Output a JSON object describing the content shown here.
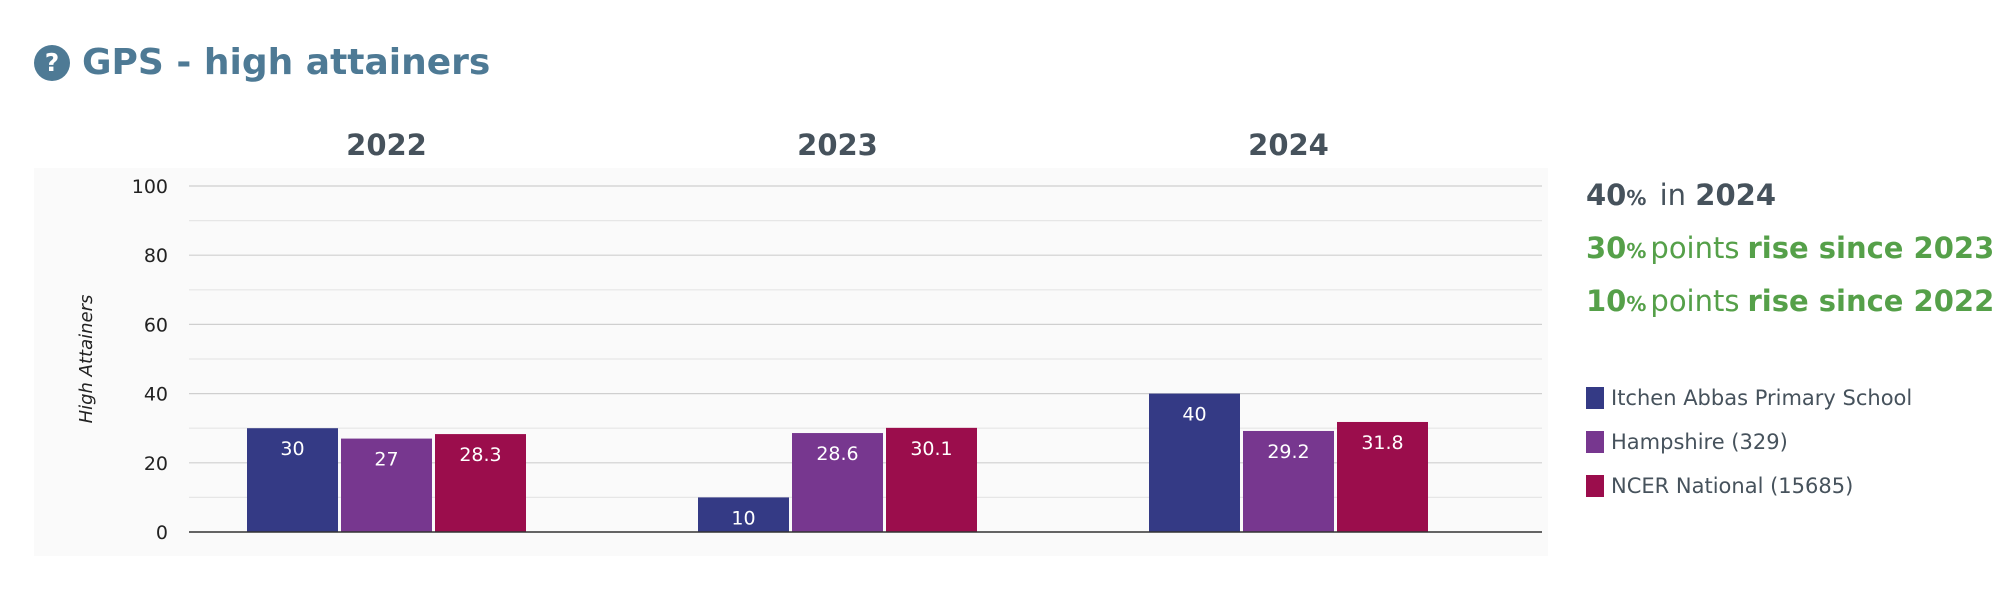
{
  "title": "GPS - high attainers",
  "help_icon_glyph": "?",
  "stats": {
    "line1": {
      "num": "40",
      "pct": "%",
      "text": "in",
      "strong": "2024"
    },
    "line2": {
      "num": "30",
      "pct": "%",
      "text": "points",
      "strong": "rise since 2023"
    },
    "line3": {
      "num": "10",
      "pct": "%",
      "text": "points",
      "strong": "rise since 2022"
    }
  },
  "colors": {
    "school": "#343a85",
    "hampshire": "#77378f",
    "national": "#9b0d4c",
    "title": "#4e7a95",
    "green": "#55a049"
  },
  "chart_data": {
    "type": "bar",
    "categories": [
      "2022",
      "2023",
      "2024"
    ],
    "series": [
      {
        "name": "Itchen Abbas Primary School",
        "values": [
          30,
          10,
          40
        ],
        "labels": [
          "30",
          "10",
          "40"
        ],
        "color": "#343a85"
      },
      {
        "name": "Hampshire (329)",
        "values": [
          27,
          28.6,
          29.2
        ],
        "labels": [
          "27",
          "28.6",
          "29.2"
        ],
        "color": "#77378f"
      },
      {
        "name": "NCER National (15685)",
        "values": [
          28.3,
          30.1,
          31.8
        ],
        "labels": [
          "28.3",
          "30.1",
          "31.8"
        ],
        "color": "#9b0d4c"
      }
    ],
    "ylabel": "High Attainers",
    "ylim": [
      0,
      100
    ],
    "yticks": [
      "0",
      "20",
      "40",
      "60",
      "80",
      "100"
    ],
    "grid": true,
    "legend": "right"
  }
}
